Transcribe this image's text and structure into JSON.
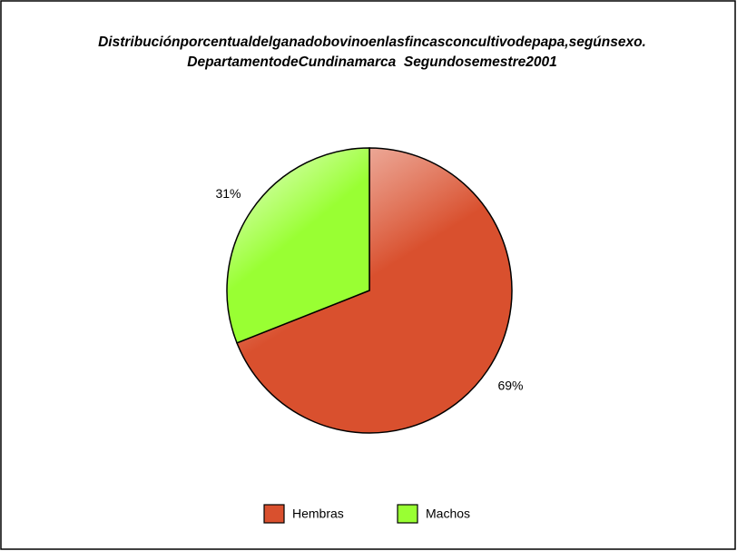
{
  "chart_data": {
    "type": "pie",
    "title": [
      "Distribuciónporcentualdelganadobovinoenlasfincasconcultivodepapa,segúnsexo.",
      "DepartamentodeCundinamarca  Segundosemestre2001"
    ],
    "categories": [
      "Hembras",
      "Machos"
    ],
    "values": [
      69,
      31
    ],
    "value_labels": [
      "69%",
      "31%"
    ],
    "colors": [
      "#d9502e",
      "#99ff33"
    ],
    "legend": "bottom"
  }
}
